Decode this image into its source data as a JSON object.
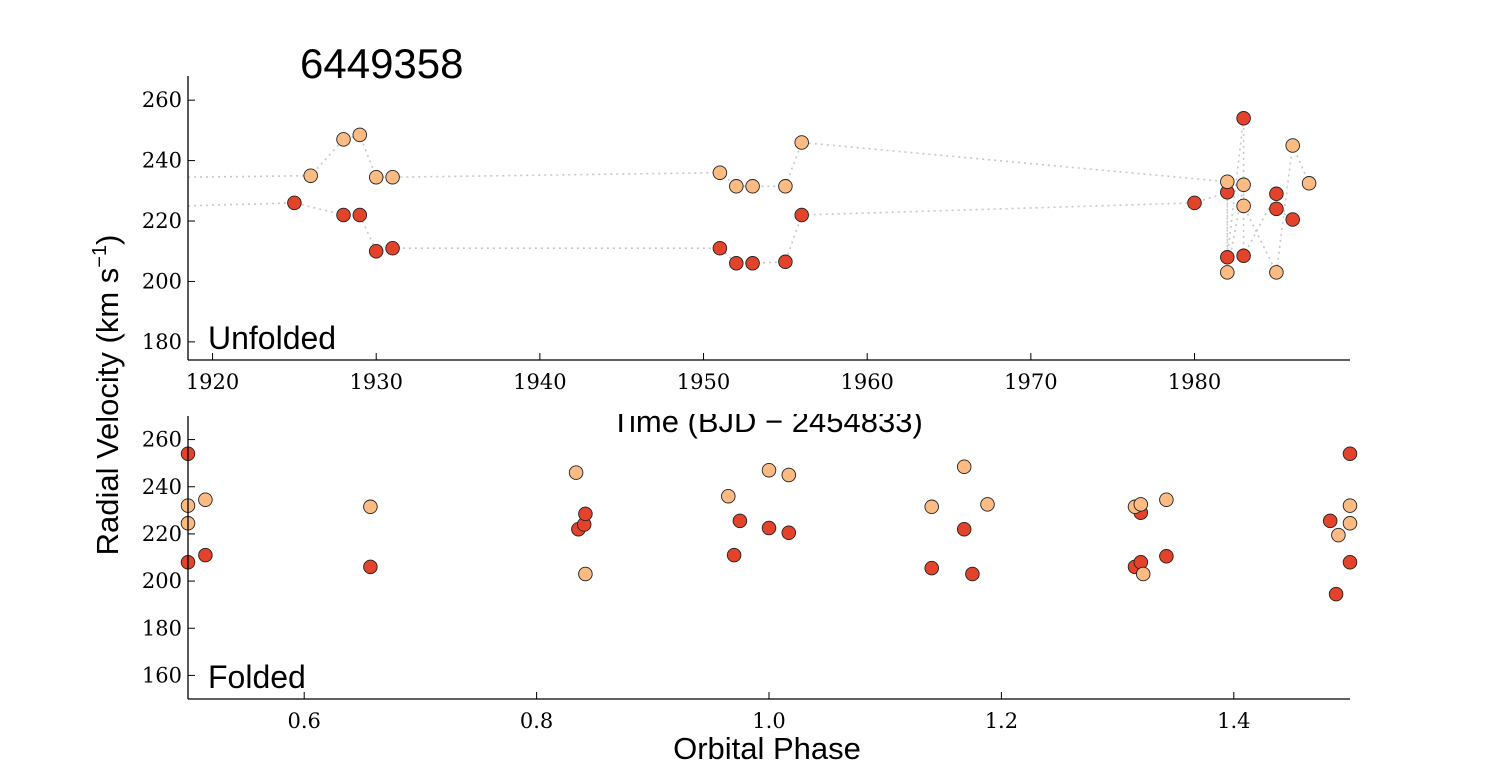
{
  "figure": {
    "title": "6449358",
    "ylabel_main": "Radial Velocity (km s",
    "ylabel_sup": "−1",
    "ylabel_close": ")"
  },
  "colors": {
    "primary": "#e2432a",
    "secondary": "#fdbb84",
    "connector": "#c8c8c8",
    "axis": "#000000"
  },
  "chart_data": [
    {
      "type": "scatter",
      "panel_label": "Unfolded",
      "title": "6449358",
      "xlabel": "Time (BJD − 2454833)",
      "ylabel": "Radial Velocity (km s−1)",
      "xlim": [
        1918.5,
        1989.5
      ],
      "ylim": [
        174,
        268
      ],
      "xticks": [
        1920,
        1930,
        1940,
        1950,
        1960,
        1970,
        1980
      ],
      "yticks": [
        180,
        200,
        220,
        240,
        260
      ],
      "grid": false,
      "connected": true,
      "series": [
        {
          "color": "#e2432a",
          "x": [
            1925.0,
            1928.0,
            1929.0,
            1930.0,
            1931.0,
            1951.0,
            1952.0,
            1953.0,
            1955.0,
            1956.0,
            1980.0,
            1982.0,
            1982.0,
            1983.0,
            1983.0,
            1985.0,
            1985.0,
            1986.0
          ],
          "y": [
            226,
            222,
            222,
            210,
            211,
            211,
            206,
            206,
            206.5,
            222,
            226,
            229.5,
            208,
            254,
            208.5,
            229,
            224,
            220.5
          ]
        },
        {
          "color": "#fdbb84",
          "x": [
            1926.0,
            1928.0,
            1929.0,
            1930.0,
            1931.0,
            1951.0,
            1952.0,
            1953.0,
            1955.0,
            1956.0,
            1982.0,
            1982.0,
            1983.0,
            1983.0,
            1985.0,
            1986.0,
            1987.0
          ],
          "y": [
            235,
            247,
            248.5,
            234.5,
            234.5,
            236,
            231.5,
            231.5,
            231.5,
            246,
            233,
            203,
            232,
            225,
            203,
            245,
            232.5
          ]
        }
      ],
      "connector_lines": [
        {
          "color": "#c8c8c8",
          "x": [
            1918.5,
            1925.0,
            1928.0,
            1929.0,
            1930.0,
            1931.0,
            1951.0,
            1952.0,
            1953.0,
            1955.0,
            1956.0,
            1980.0,
            1982.0,
            1982.0,
            1983.0,
            1983.0,
            1985.0,
            1985.0,
            1986.0
          ],
          "y": [
            225,
            226,
            222,
            222,
            210,
            211,
            211,
            206,
            206,
            206.5,
            222,
            226,
            229.5,
            208,
            254,
            208.5,
            229,
            224,
            220.5
          ]
        },
        {
          "color": "#c8c8c8",
          "x": [
            1918.5,
            1926.0,
            1928.0,
            1929.0,
            1930.0,
            1931.0,
            1951.0,
            1952.0,
            1953.0,
            1955.0,
            1956.0,
            1982.0,
            1982.0,
            1983.0,
            1983.0,
            1985.0,
            1986.0,
            1987.0
          ],
          "y": [
            234.5,
            235,
            247,
            248.5,
            234.5,
            234.5,
            236,
            231.5,
            231.5,
            231.5,
            246,
            233,
            203,
            232,
            225,
            203,
            245,
            232.5
          ]
        }
      ]
    },
    {
      "type": "scatter",
      "panel_label": "Folded",
      "xlabel": "Orbital Phase",
      "ylabel": "Radial Velocity (km s−1)",
      "xlim": [
        0.5,
        1.5
      ],
      "ylim": [
        150,
        270
      ],
      "xticks": [
        0.6,
        0.8,
        1.0,
        1.2,
        1.4
      ],
      "xtick_labels": [
        "0.6",
        "0.8",
        "1.0",
        "1.2",
        "1.4"
      ],
      "yticks": [
        160,
        180,
        200,
        220,
        240,
        260
      ],
      "grid": false,
      "connected": false,
      "series": [
        {
          "color": "#e2432a",
          "x": [
            0.5,
            0.5,
            0.515,
            0.657,
            0.836,
            0.841,
            0.842,
            0.97,
            0.975,
            1.0,
            1.017,
            1.14,
            1.168,
            1.175,
            1.315,
            1.32,
            1.32,
            1.342,
            1.483,
            1.488,
            1.5,
            1.5
          ],
          "y": [
            254,
            208,
            211,
            206,
            222,
            224,
            228.5,
            211,
            225.5,
            222.5,
            220.5,
            205.5,
            222,
            203,
            206,
            208,
            229,
            210.5,
            225.5,
            194.5,
            254,
            208
          ]
        },
        {
          "color": "#fdbb84",
          "x": [
            0.5,
            0.5,
            0.515,
            0.657,
            0.834,
            0.842,
            0.965,
            1.0,
            1.017,
            1.14,
            1.168,
            1.188,
            1.315,
            1.32,
            1.322,
            1.342,
            1.49,
            1.5,
            1.5
          ],
          "y": [
            232,
            224.5,
            234.5,
            231.5,
            246,
            203,
            236,
            247,
            245,
            231.5,
            248.5,
            232.5,
            231.5,
            232.5,
            203,
            234.5,
            219.5,
            232,
            224.5
          ]
        }
      ]
    }
  ]
}
